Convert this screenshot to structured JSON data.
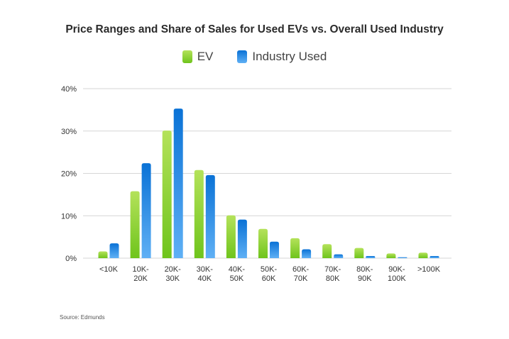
{
  "chart_data": {
    "type": "bar",
    "title": "Price Ranges and Share of Sales for Used EVs vs. Overall Used Industry",
    "categories": [
      [
        "<10K"
      ],
      [
        "10K-",
        "20K"
      ],
      [
        "20K-",
        "30K"
      ],
      [
        "30K-",
        "40K"
      ],
      [
        "40K-",
        "50K"
      ],
      [
        "50K-",
        "60K"
      ],
      [
        "60K-",
        "70K"
      ],
      [
        "70K-",
        "80K"
      ],
      [
        "80K-",
        "90K"
      ],
      [
        "90K-",
        "100K"
      ],
      [
        ">100K"
      ]
    ],
    "series": [
      {
        "name": "EV",
        "color_top": "#b4e25a",
        "color_bottom": "#6fc41c",
        "values": [
          1.6,
          15.8,
          30.1,
          20.8,
          10.1,
          6.9,
          4.7,
          3.3,
          2.4,
          1.1,
          1.3
        ]
      },
      {
        "name": "Industry Used",
        "color_top": "#0a72d6",
        "color_bottom": "#5fb0f5",
        "values": [
          3.5,
          22.4,
          35.3,
          19.6,
          9.1,
          3.9,
          2.1,
          0.9,
          0.5,
          0.2,
          0.5
        ]
      }
    ],
    "y_ticks": [
      "0%",
      "10%",
      "20%",
      "30%",
      "40%"
    ],
    "y_tick_values": [
      0,
      10,
      20,
      30,
      40
    ],
    "ylim": [
      0,
      40
    ],
    "grid": true,
    "legend_position": "top-center"
  },
  "legend": {
    "ev_label": "EV",
    "industry_label": "Industry Used",
    "ev_color": "#8cd336",
    "industry_color": "#1b80e0"
  },
  "source": "Source: Edmunds"
}
